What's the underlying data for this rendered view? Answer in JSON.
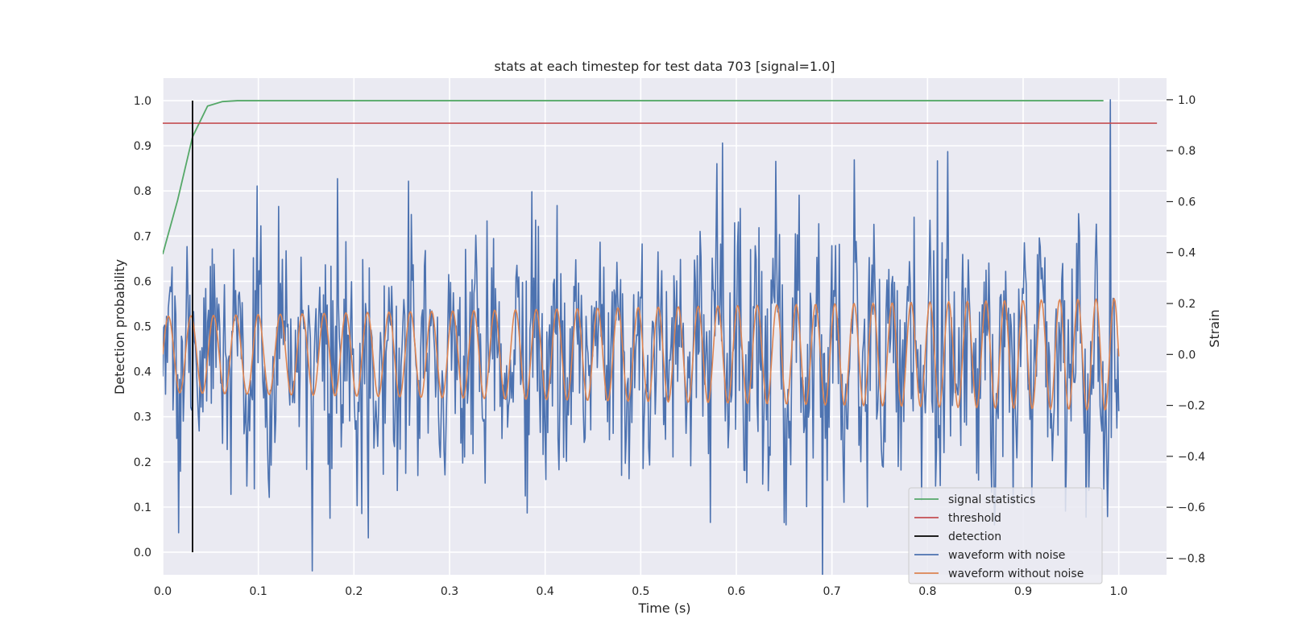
{
  "chart_data": {
    "type": "line",
    "title": "stats at each timestep for test data 703 [signal=1.0]",
    "xlabel": "Time (s)",
    "ylabel": "Detection probability",
    "ylabel_right": "Strain",
    "xlim": [
      0.0,
      1.05
    ],
    "ylim": [
      -0.05,
      1.05
    ],
    "ylim_right": [
      -0.865,
      1.085
    ],
    "x_ticks": [
      0.0,
      0.1,
      0.2,
      0.3,
      0.4,
      0.5,
      0.6,
      0.7,
      0.8,
      0.9,
      1.0
    ],
    "x_tick_labels": [
      "0.0",
      "0.1",
      "0.2",
      "0.3",
      "0.4",
      "0.5",
      "0.6",
      "0.7",
      "0.8",
      "0.9",
      "1.0"
    ],
    "y_ticks": [
      0.0,
      0.1,
      0.2,
      0.3,
      0.4,
      0.5,
      0.6,
      0.7,
      0.8,
      0.9,
      1.0
    ],
    "y_tick_labels": [
      "0.0",
      "0.1",
      "0.2",
      "0.3",
      "0.4",
      "0.5",
      "0.6",
      "0.7",
      "0.8",
      "0.9",
      "1.0"
    ],
    "y_ticks_right": [
      -0.8,
      -0.6,
      -0.4,
      -0.2,
      0.0,
      0.2,
      0.4,
      0.6,
      0.8,
      1.0
    ],
    "y_tick_labels_right": [
      "−0.8",
      "−0.6",
      "−0.4",
      "−0.2",
      "0.0",
      "0.2",
      "0.4",
      "0.6",
      "0.8",
      "1.0"
    ],
    "grid": true,
    "legend_position": "lower right",
    "series": [
      {
        "name": "signal statistics",
        "axis": "left",
        "color": "#55a868",
        "x": [
          0.0,
          0.0156,
          0.0312,
          0.0469,
          0.0625,
          0.078,
          0.2,
          0.4,
          0.6,
          0.8,
          0.984
        ],
        "y": [
          0.66,
          0.78,
          0.92,
          0.988,
          0.998,
          1.0,
          1.0,
          1.0,
          1.0,
          1.0,
          1.0
        ]
      },
      {
        "name": "threshold",
        "axis": "left",
        "color": "#c44e52",
        "x": [
          0.0,
          1.04
        ],
        "y": [
          0.95,
          0.95
        ]
      },
      {
        "name": "detection",
        "axis": "left",
        "color": "#000000",
        "x": [
          0.0312,
          0.0312
        ],
        "y": [
          0.0,
          1.0
        ]
      },
      {
        "name": "waveform with noise",
        "axis": "right",
        "color": "#4c72b0",
        "x_range": [
          0.0,
          1.0
        ],
        "sample_count": 1024,
        "noise_std": 0.22,
        "peaks": [
          {
            "x": 0.017,
            "y": -0.7
          },
          {
            "x": 0.183,
            "y": 0.69
          },
          {
            "x": 0.215,
            "y": -0.72
          },
          {
            "x": 0.586,
            "y": 0.83
          },
          {
            "x": 0.65,
            "y": -0.66
          },
          {
            "x": 0.81,
            "y": 0.76
          },
          {
            "x": 0.991,
            "y": 1.0
          }
        ]
      },
      {
        "name": "waveform without noise",
        "axis": "right",
        "color": "#dd8452",
        "x_range": [
          0.0,
          1.0
        ],
        "sample_count": 1024,
        "amplitude_start": 0.15,
        "amplitude_end": 0.22,
        "frequency_start_hz": 42,
        "frequency_end_hz": 53
      }
    ]
  }
}
